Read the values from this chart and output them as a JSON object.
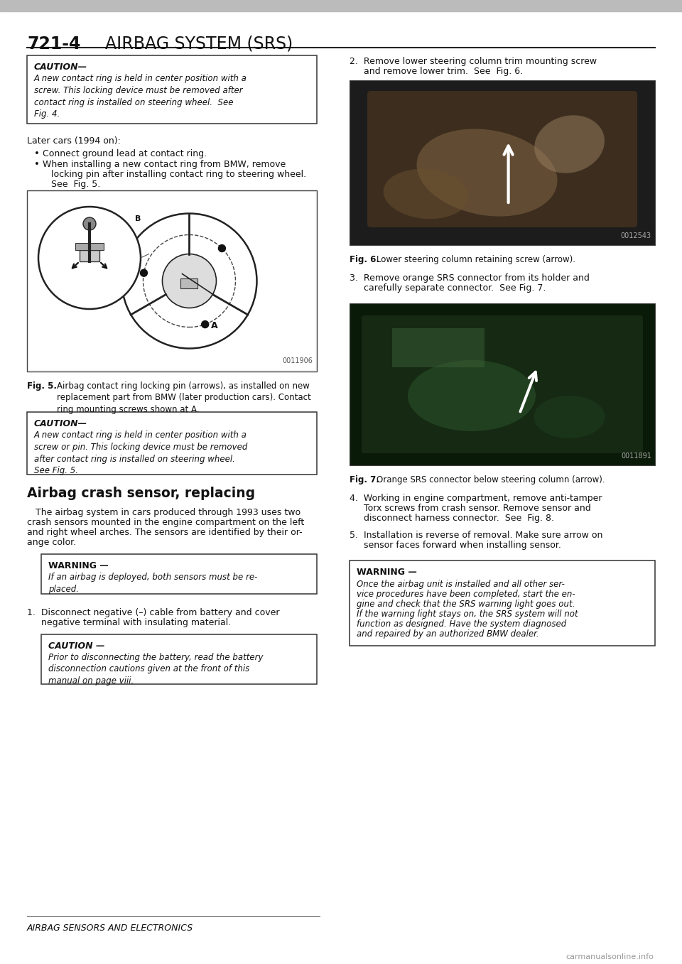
{
  "page_number": "721-4",
  "title": "AIRBAG SYSTEM (SRS)",
  "bg_color": "#ffffff",
  "page_width": 9.6,
  "page_height": 13.57,
  "caution1_title": "CAUTION—",
  "caution1_body": "A new contact ring is held in center position with a\nscrew. This locking device must be removed after\ncontact ring is installed on steering wheel.  See\nFig. 4.",
  "later_cars_text": "Later cars (1994 on):",
  "bullet1": "Connect ground lead at contact ring.",
  "bullet2_line1": "When installing a new contact ring from BMW, remove",
  "bullet2_line2": "locking pin after installing contact ring to steering wheel.",
  "bullet2_line3": "See  Fig. 5.",
  "fig5_caption_prefix": "Fig. 5.  ",
  "fig5_caption_main": "Airbag contact ring locking pin (arrows), as installed on new\nreplacement part from BMW (later production cars). Contact\nring mounting screws shown at A.",
  "caution2_title": "CAUTION—",
  "caution2_body": "A new contact ring is held in center position with a\nscrew or pin. This locking device must be removed\nafter contact ring is installed on steering wheel.\nSee Fig. 5.",
  "section_title": "Airbag crash sensor, replacing",
  "section_body_line1": "   The airbag system in cars produced through 1993 uses two",
  "section_body_line2": "crash sensors mounted in the engine compartment on the left",
  "section_body_line3": "and right wheel arches. The sensors are identified by their or-",
  "section_body_line4": "ange color.",
  "warning1_title": "WARNING —",
  "warning1_body": "If an airbag is deployed, both sensors must be re-\nplaced.",
  "step1_text_line1": "1.  Disconnect negative (–) cable from battery and cover",
  "step1_text_line2": "     negative terminal with insulating material.",
  "caution3_title": "CAUTION —",
  "caution3_body": "Prior to disconnecting the battery, read the battery\ndisconnection cautions given at the front of this\nmanual on page viii.",
  "footer_text": "AIRBAG SENSORS AND ELECTRONICS",
  "step2_line1": "2.  Remove lower steering column trim mounting screw",
  "step2_line2": "     and remove lower trim.  See  Fig. 6.",
  "fig6_caption_prefix": "Fig. 6.  ",
  "fig6_caption_main": "Lower steering column retaining screw (arrow).",
  "step3_line1": "3.  Remove orange SRS connector from its holder and",
  "step3_line2": "     carefully separate connector.  See Fig. 7.",
  "fig7_caption_prefix": "Fig. 7.  ",
  "fig7_caption_main": "Orange SRS connector below steering column (arrow).",
  "step4_line1": "4.  Working in engine compartment, remove anti-tamper",
  "step4_line2": "     Torx screws from crash sensor. Remove sensor and",
  "step4_line3": "     disconnect harness connector.  See  Fig. 8.",
  "step5_line1": "5.  Installation is reverse of removal. Make sure arrow on",
  "step5_line2": "     sensor faces forward when installing sensor.",
  "warning2_title": "WARNING —",
  "warning2_body_line1": "Once the airbag unit is installed and all other ser-",
  "warning2_body_line2": "vice procedures have been completed, start the en-",
  "warning2_body_line3": "gine and check that the SRS warning light goes out.",
  "warning2_body_line4": "If the warning light stays on, the SRS system will not",
  "warning2_body_line5": "function as designed. Have the system diagnosed",
  "warning2_body_line6": "and repaired by an authorized BMW dealer.",
  "watermark": "carmanualsonline.info",
  "code1": "0012543",
  "code2": "0011891",
  "code3": "0011906"
}
